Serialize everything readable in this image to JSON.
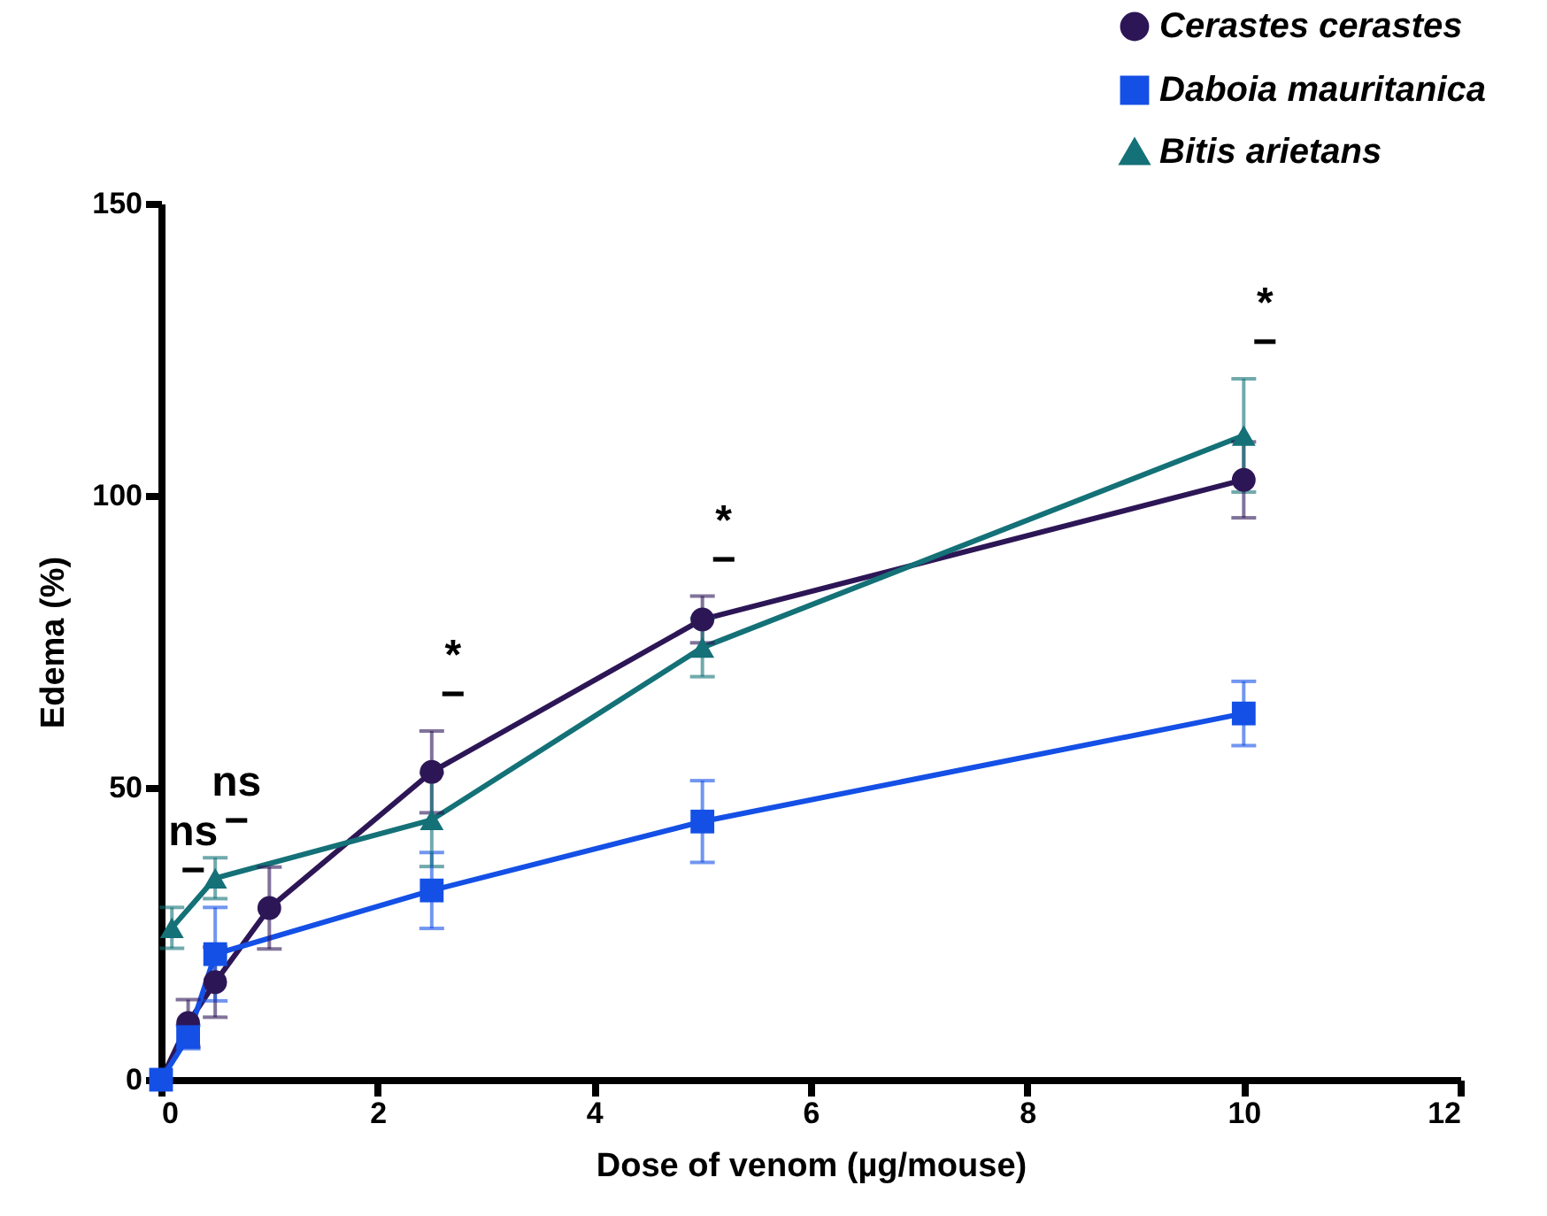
{
  "chart_data": {
    "type": "line",
    "xlabel": "Dose of venom (µg/mouse)",
    "ylabel": "Edema (%)",
    "xlim": [
      0,
      12
    ],
    "xticks": [
      0,
      2,
      4,
      6,
      8,
      10,
      12
    ],
    "ylim": [
      0,
      150
    ],
    "yticks": [
      0,
      50,
      100,
      150
    ],
    "grid": false,
    "legend": "top right",
    "line_style": "solid",
    "series": [
      {
        "name": "Cerastes cerastes",
        "color": "#2d1656",
        "marker": "circle",
        "x": [
          0,
          0.25,
          0.5,
          1,
          2.5,
          5,
          10
        ],
        "values": [
          0,
          9.7,
          16.7,
          29.4,
          52.7,
          78.8,
          102.7
        ],
        "errors": [
          null,
          4,
          6,
          7,
          7,
          4,
          6.5
        ]
      },
      {
        "name": "Daboia mauritanica",
        "color": "#1450e6",
        "marker": "square",
        "x": [
          0,
          0.25,
          0.5,
          2.5,
          5,
          10
        ],
        "values": [
          0,
          7.3,
          21.5,
          32.4,
          44.2,
          62.7
        ],
        "errors": [
          null,
          2,
          8,
          6.5,
          7,
          5.5
        ]
      },
      {
        "name": "Bitis arietans",
        "color": "#137177",
        "marker": "triangle",
        "x": [
          0.1,
          0.5,
          2.5,
          5,
          10
        ],
        "values": [
          26,
          34.5,
          44.5,
          74,
          110.3
        ],
        "errors": [
          3.5,
          3.5,
          8,
          5,
          9.7
        ]
      }
    ],
    "annotations": [
      {
        "text": "−",
        "x": 0.1,
        "y": 26
      },
      {
        "text": "ns",
        "x": 0.1,
        "y": 26
      },
      {
        "text": "−",
        "x": 0.5,
        "y": 34.5
      },
      {
        "text": "ns",
        "x": 0.5,
        "y": 34.5
      },
      {
        "text": "−",
        "x": 2.5,
        "y": 52.7
      },
      {
        "text": "*",
        "x": 2.5,
        "y": 52.7
      },
      {
        "text": "−",
        "x": 5,
        "y": 78.8
      },
      {
        "text": "*",
        "x": 5,
        "y": 78.8
      },
      {
        "text": "−",
        "x": 10,
        "y": 110.3
      },
      {
        "text": "*",
        "x": 10,
        "y": 110.3
      }
    ]
  }
}
